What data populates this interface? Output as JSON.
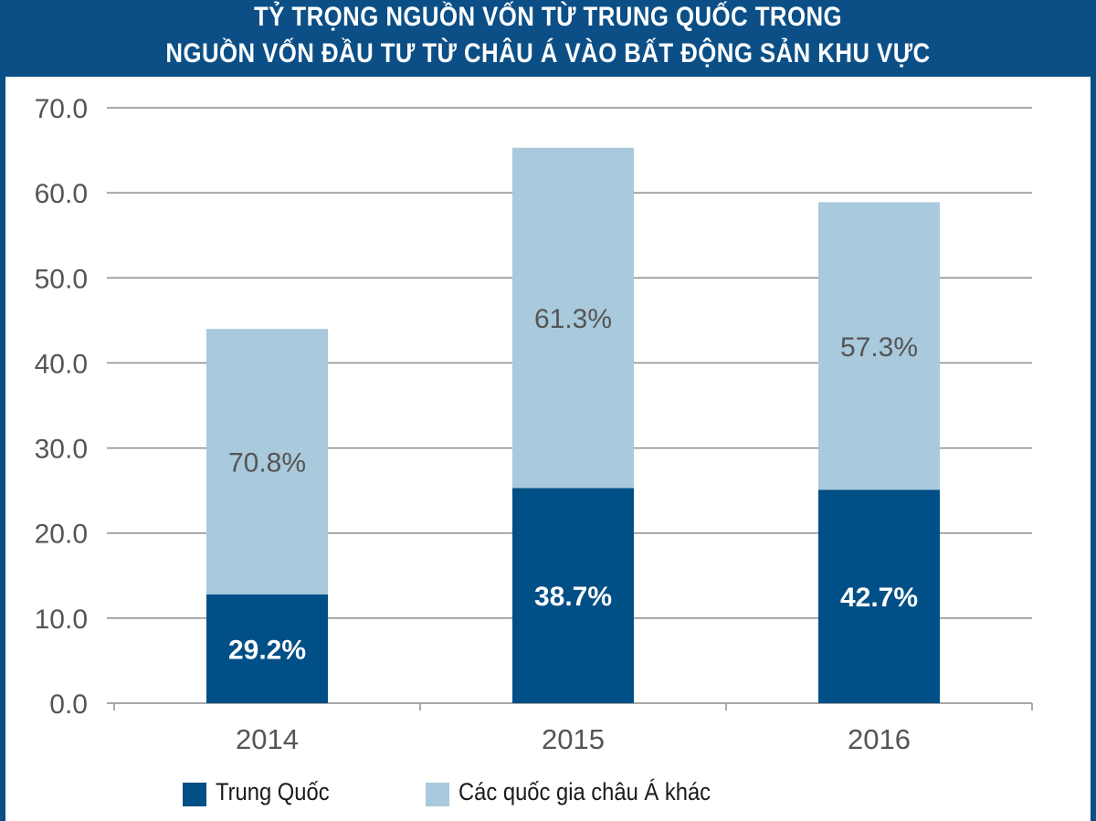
{
  "header": {
    "title_line1": "TỶ TRỌNG NGUỒN VỐN TỪ TRUNG QUỐC TRONG",
    "title_line2": "NGUỒN VỐN ĐẦU TƯ TỪ CHÂU Á VÀO BẤT ĐỘNG SẢN KHU VỰC"
  },
  "colors": {
    "header_bg": "#0b4f86",
    "china": "#004f86",
    "other": "#a9c9dc",
    "grid": "#8c8c8c",
    "tick_text": "#555555"
  },
  "chart_data": {
    "type": "bar",
    "stacked": true,
    "title": "TỶ TRỌNG NGUỒN VỐN TỪ TRUNG QUỐC TRONG NGUỒN VỐN ĐẦU TƯ TỪ CHÂU Á VÀO BẤT ĐỘNG SẢN KHU VỰC",
    "categories": [
      "2014",
      "2015",
      "2016"
    ],
    "ylim": [
      0,
      70
    ],
    "yticks": [
      "0.0",
      "10.0",
      "20.0",
      "30.0",
      "40.0",
      "50.0",
      "60.0",
      "70.0"
    ],
    "grid": true,
    "legend_position": "bottom",
    "series": [
      {
        "name": "Trung Quốc",
        "values": [
          12.8,
          25.3,
          25.1
        ],
        "labels": [
          "29.2%",
          "38.7%",
          "42.7%"
        ],
        "color": "#004f86",
        "label_color": "#ffffff"
      },
      {
        "name": "Các quốc gia châu Á khác",
        "values": [
          31.2,
          40.0,
          33.8
        ],
        "labels": [
          "70.8%",
          "61.3%",
          "57.3%"
        ],
        "color": "#a9c9dc",
        "label_color": "#555555"
      }
    ]
  }
}
